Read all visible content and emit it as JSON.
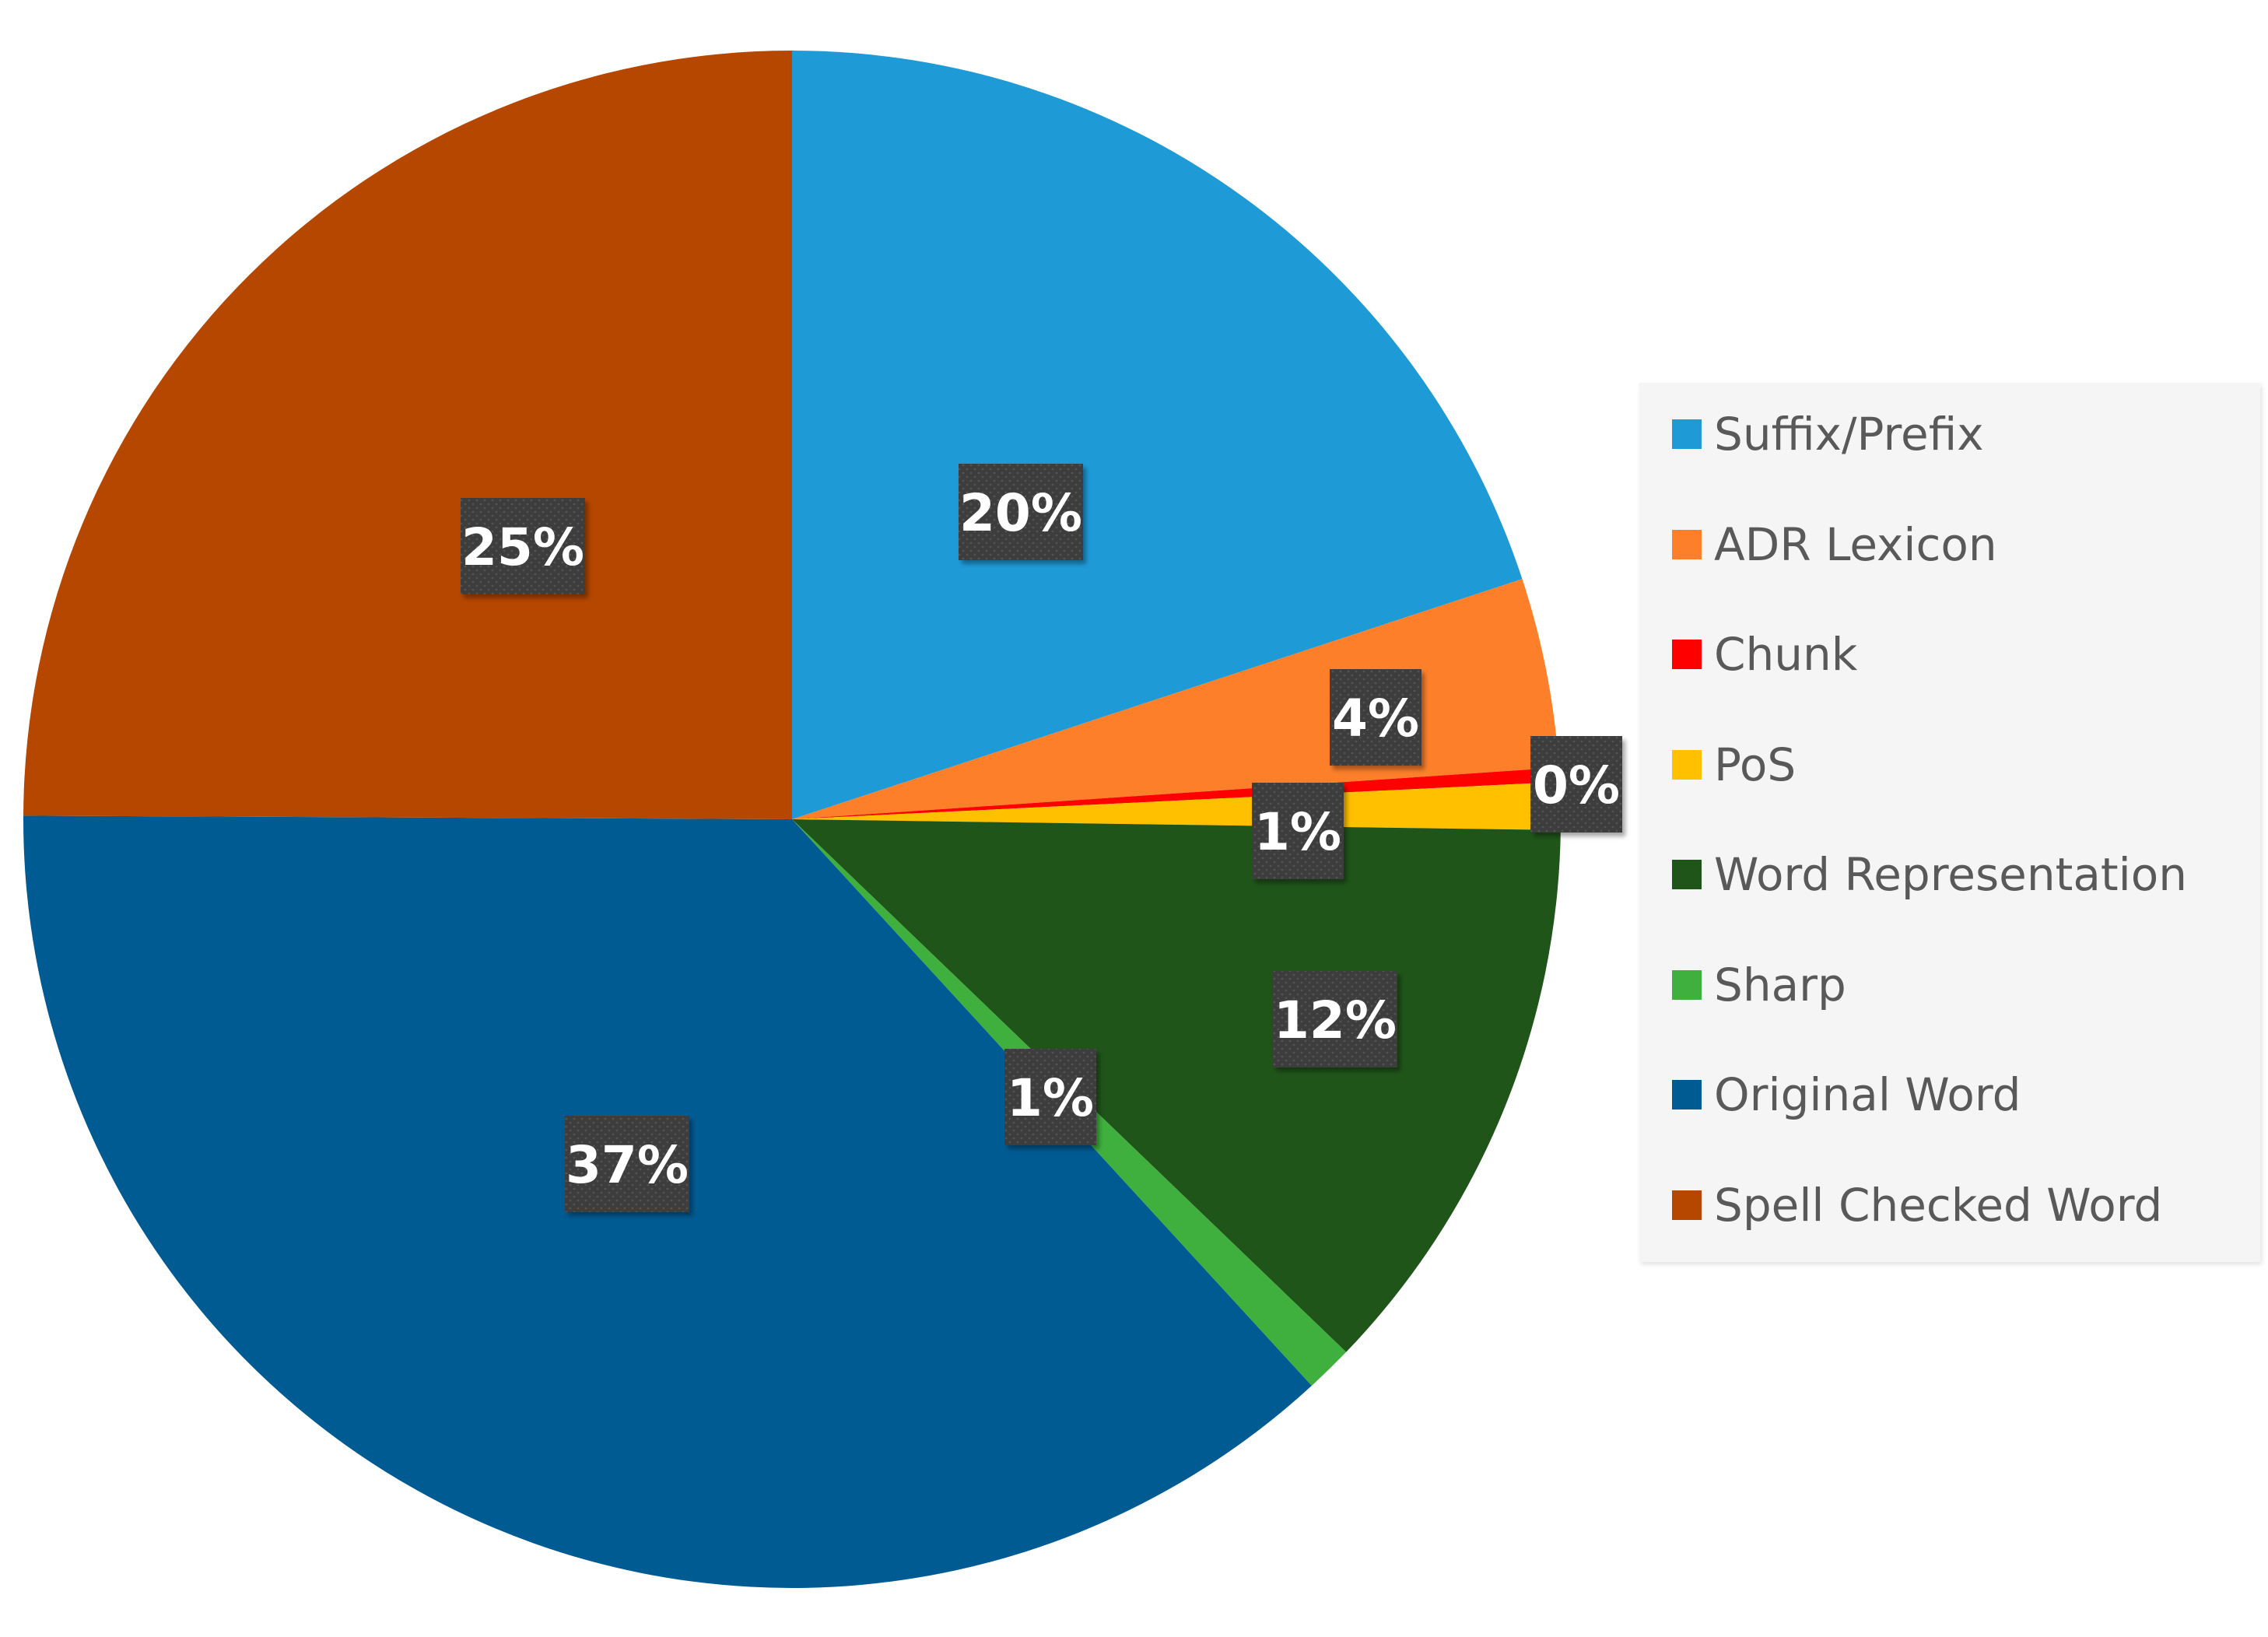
{
  "chart_data": {
    "type": "pie",
    "title": "",
    "start_angle_deg": 0,
    "direction": "clockwise",
    "legend_position": "right",
    "slices": [
      {
        "name": "Suffix/Prefix",
        "value": 20,
        "label": "20%",
        "color": "#1e9bd7"
      },
      {
        "name": "ADR Lexicon",
        "value": 4,
        "label": "4%",
        "color": "#fd7f2a"
      },
      {
        "name": "Chunk",
        "value": 0.3,
        "label": "0%",
        "color": "#ff0000"
      },
      {
        "name": "PoS",
        "value": 1,
        "label": "1%",
        "color": "#ffc000"
      },
      {
        "name": "Word Representation",
        "value": 12,
        "label": "12%",
        "color": "#1f5519"
      },
      {
        "name": "Sharp",
        "value": 1,
        "label": "1%",
        "color": "#3fb03d"
      },
      {
        "name": "Original Word",
        "value": 37,
        "label": "37%",
        "color": "#015b93"
      },
      {
        "name": "Spell Checked Word",
        "value": 25,
        "label": "25%",
        "color": "#b64701"
      }
    ]
  }
}
